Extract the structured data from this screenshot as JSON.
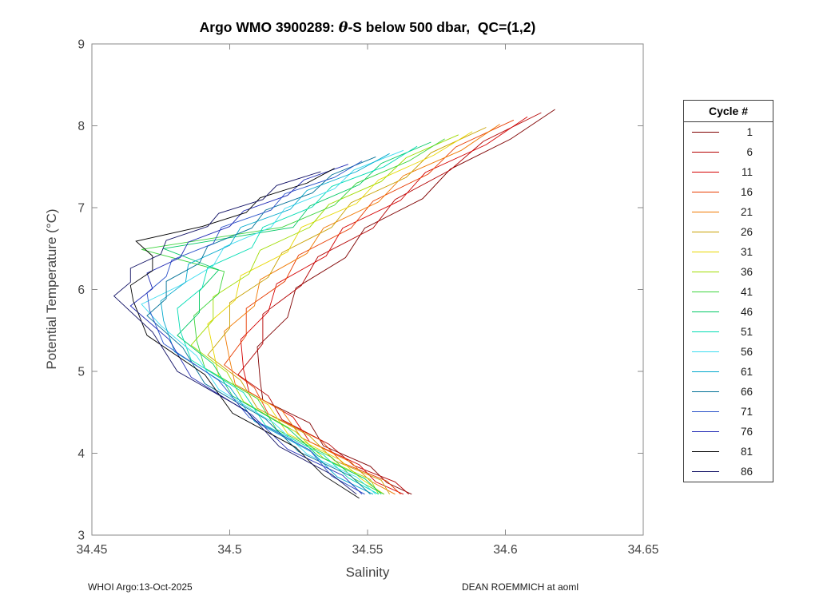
{
  "title": {
    "prefix": "Argo WMO 3900289: ",
    "theta": "θ",
    "suffix": "-S below 500 dbar,  QC=(1,2)"
  },
  "footer": {
    "left": "WHOI Argo:13-Oct-2025",
    "right": "DEAN ROEMMICH at aoml"
  },
  "chart_data": {
    "type": "line",
    "title": "Argo WMO 3900289: θ-S below 500 dbar,  QC=(1,2)",
    "xlabel": "Salinity",
    "ylabel": "Potential Temperature (°C)",
    "xlim": [
      34.45,
      34.65
    ],
    "ylim": [
      3,
      9
    ],
    "xticks": [
      34.45,
      34.5,
      34.55,
      34.6,
      34.65
    ],
    "xtick_labels": [
      "34.45",
      "34.5",
      "34.55",
      "34.6",
      "34.65"
    ],
    "yticks": [
      3,
      4,
      5,
      6,
      7,
      8,
      9
    ],
    "ytick_labels": [
      "3",
      "4",
      "5",
      "6",
      "7",
      "8",
      "9"
    ],
    "grid": false,
    "legend_title": "Cycle #",
    "legend_position": "right-outside",
    "series": [
      {
        "label": "1",
        "color": "#7f0000",
        "t": [
          8.2,
          7.84,
          7.47,
          7.11,
          6.75,
          6.39,
          6.02,
          5.66,
          5.3,
          4.9,
          4.65,
          4.37,
          4.09,
          3.84,
          3.64,
          3.5
        ],
        "s": [
          34.618,
          34.602,
          34.58,
          34.57,
          34.549,
          34.542,
          34.524,
          34.521,
          34.51,
          34.511,
          34.512,
          34.529,
          34.534,
          34.551,
          34.557,
          34.566
        ]
      },
      {
        "label": "6",
        "color": "#b40000",
        "t": [
          8.16,
          7.81,
          7.46,
          7.1,
          6.75,
          6.4,
          6.05,
          5.7,
          5.34,
          4.96,
          4.7,
          4.41,
          4.11,
          3.85,
          3.65,
          3.5
        ],
        "s": [
          34.613,
          34.592,
          34.58,
          34.56,
          34.552,
          34.532,
          34.526,
          34.512,
          34.512,
          34.503,
          34.514,
          34.519,
          34.536,
          34.545,
          34.56,
          34.565
        ]
      },
      {
        "label": "11",
        "color": "#d40000",
        "t": [
          8.11,
          7.77,
          7.43,
          7.09,
          6.75,
          6.41,
          6.07,
          5.73,
          5.39,
          5.02,
          4.75,
          4.44,
          4.14,
          3.86,
          3.65,
          3.5
        ],
        "s": [
          34.608,
          34.593,
          34.571,
          34.562,
          34.541,
          34.535,
          34.517,
          34.514,
          34.504,
          34.505,
          34.507,
          34.523,
          34.529,
          34.547,
          34.553,
          34.563
        ]
      },
      {
        "label": "16",
        "color": "#e83c00",
        "t": [
          8.07,
          7.74,
          7.41,
          7.08,
          6.75,
          6.42,
          6.1,
          5.77,
          5.44,
          5.08,
          4.8,
          4.48,
          4.16,
          3.88,
          3.66,
          3.5
        ],
        "s": [
          34.603,
          34.582,
          34.572,
          34.552,
          34.544,
          34.525,
          34.52,
          34.506,
          34.506,
          34.498,
          34.509,
          34.514,
          34.533,
          34.541,
          34.557,
          34.562
        ]
      },
      {
        "label": "21",
        "color": "#f07800",
        "t": [
          8.02,
          7.7,
          7.39,
          7.07,
          6.75,
          6.44,
          6.12,
          5.8,
          5.49,
          5.14,
          4.84,
          4.52,
          4.19,
          3.89,
          3.66,
          3.5
        ],
        "s": [
          34.598,
          34.584,
          34.563,
          34.554,
          34.534,
          34.528,
          34.511,
          34.509,
          34.498,
          34.5,
          34.502,
          34.519,
          34.526,
          34.544,
          34.551,
          34.56
        ]
      },
      {
        "label": "26",
        "color": "#c8a000",
        "t": [
          7.98,
          7.67,
          7.37,
          7.06,
          6.76,
          6.45,
          6.15,
          5.84,
          5.53,
          5.2,
          4.89,
          4.55,
          4.21,
          3.91,
          3.67,
          3.5
        ],
        "s": [
          34.593,
          34.573,
          34.564,
          34.544,
          34.537,
          34.519,
          34.514,
          34.5,
          34.5,
          34.492,
          34.504,
          34.51,
          34.529,
          34.538,
          34.555,
          34.558
        ]
      },
      {
        "label": "31",
        "color": "#e8d800",
        "t": [
          7.93,
          7.64,
          7.34,
          7.05,
          6.76,
          6.46,
          6.17,
          5.87,
          5.58,
          5.26,
          4.94,
          4.59,
          4.24,
          3.92,
          3.68,
          3.5
        ],
        "s": [
          34.588,
          34.574,
          34.554,
          34.546,
          34.526,
          34.521,
          34.504,
          34.502,
          34.492,
          34.494,
          34.496,
          34.514,
          34.521,
          34.54,
          34.548,
          34.556
        ]
      },
      {
        "label": "36",
        "color": "#a0dc00",
        "t": [
          7.89,
          7.61,
          7.32,
          7.04,
          6.76,
          6.48,
          6.19,
          5.91,
          5.63,
          5.32,
          4.99,
          4.63,
          4.26,
          3.94,
          3.68,
          3.5
        ],
        "s": [
          34.583,
          34.564,
          34.555,
          34.536,
          34.529,
          34.511,
          34.507,
          34.494,
          34.494,
          34.486,
          34.499,
          34.505,
          34.524,
          34.534,
          34.551,
          34.554
        ]
      },
      {
        "label": "41",
        "color": "#3cd43c",
        "t": [
          7.84,
          7.57,
          7.3,
          7.03,
          6.76,
          6.49,
          6.22,
          5.95,
          5.68,
          5.38,
          5.04,
          4.67,
          4.29,
          3.95,
          3.69,
          3.5
        ],
        "s": [
          34.578,
          34.565,
          34.546,
          34.538,
          34.519,
          34.468,
          34.498,
          34.496,
          34.487,
          34.488,
          34.491,
          34.51,
          34.517,
          34.537,
          34.545,
          34.556
        ]
      },
      {
        "label": "46",
        "color": "#00c864",
        "t": [
          7.8,
          7.54,
          7.28,
          7.02,
          6.76,
          6.5,
          6.24,
          5.98,
          5.72,
          5.44,
          5.09,
          4.7,
          4.31,
          3.97,
          3.69,
          3.5
        ],
        "s": [
          34.573,
          34.555,
          34.547,
          34.529,
          34.523,
          34.476,
          34.496,
          34.489,
          34.489,
          34.481,
          34.494,
          34.501,
          34.521,
          34.532,
          34.549,
          34.555
        ]
      },
      {
        "label": "51",
        "color": "#00dcb4",
        "t": [
          7.75,
          7.5,
          7.26,
          7.01,
          6.76,
          6.51,
          6.27,
          6.02,
          5.77,
          5.5,
          5.14,
          4.74,
          4.34,
          3.98,
          3.7,
          3.5
        ],
        "s": [
          34.568,
          34.556,
          34.537,
          34.53,
          34.512,
          34.508,
          34.492,
          34.49,
          34.481,
          34.482,
          34.486,
          34.505,
          34.513,
          34.534,
          34.543,
          34.554
        ]
      },
      {
        "label": "56",
        "color": "#3cdcf0",
        "t": [
          7.7,
          7.46,
          7.23,
          6.99,
          6.76,
          6.52,
          6.29,
          6.05,
          5.82,
          5.56,
          5.19,
          4.78,
          4.37,
          3.99,
          3.71,
          3.5
        ],
        "s": [
          34.563,
          34.545,
          34.538,
          34.52,
          34.515,
          34.498,
          34.494,
          34.482,
          34.468,
          34.475,
          34.488,
          34.496,
          34.516,
          34.528,
          34.546,
          34.553
        ]
      },
      {
        "label": "61",
        "color": "#00a8cc",
        "t": [
          7.66,
          7.44,
          7.21,
          6.98,
          6.76,
          6.54,
          6.31,
          6.09,
          5.86,
          5.62,
          5.24,
          4.81,
          4.39,
          4.01,
          3.71,
          3.5
        ],
        "s": [
          34.558,
          34.546,
          34.528,
          34.522,
          34.504,
          34.5,
          34.485,
          34.484,
          34.475,
          34.476,
          34.48,
          34.5,
          34.509,
          34.53,
          34.539,
          34.552
        ]
      },
      {
        "label": "66",
        "color": "#007096",
        "t": [
          7.62,
          7.4,
          7.18,
          6.97,
          6.75,
          6.53,
          6.32,
          6.1,
          5.89,
          5.68,
          5.29,
          4.85,
          4.42,
          4.02,
          3.72,
          3.5
        ],
        "s": [
          34.553,
          34.537,
          34.53,
          34.513,
          34.508,
          34.492,
          34.489,
          34.477,
          34.477,
          34.47,
          34.483,
          34.491,
          34.513,
          34.525,
          34.544,
          34.551
        ]
      },
      {
        "label": "71",
        "color": "#2850c8",
        "t": [
          7.57,
          7.37,
          7.17,
          6.97,
          6.76,
          6.56,
          6.36,
          6.16,
          5.96,
          5.74,
          5.34,
          4.89,
          4.44,
          4.04,
          3.72,
          3.5
        ],
        "s": [
          34.548,
          34.538,
          34.52,
          34.515,
          34.497,
          34.494,
          34.479,
          34.477,
          34.47,
          34.471,
          34.476,
          34.496,
          34.507,
          34.529,
          34.537,
          34.549
        ]
      },
      {
        "label": "76",
        "color": "#1e28b4",
        "t": [
          7.53,
          7.34,
          7.15,
          6.96,
          6.77,
          6.58,
          6.39,
          6.2,
          6.01,
          5.8,
          5.39,
          4.93,
          4.47,
          4.05,
          3.73,
          3.5
        ],
        "s": [
          34.543,
          34.527,
          34.521,
          34.505,
          34.5,
          34.485,
          34.482,
          34.47,
          34.472,
          34.464,
          34.478,
          34.486,
          34.508,
          34.521,
          34.541,
          34.548
        ]
      },
      {
        "label": "81",
        "color": "#000000",
        "t": [
          7.48,
          7.3,
          7.12,
          6.94,
          6.77,
          6.59,
          6.41,
          6.23,
          6.05,
          5.86,
          5.44,
          4.96,
          4.49,
          4.07,
          3.73,
          3.45
        ],
        "s": [
          34.538,
          34.528,
          34.511,
          34.506,
          34.49,
          34.466,
          34.472,
          34.472,
          34.464,
          34.465,
          34.47,
          34.491,
          34.501,
          34.524,
          34.534,
          34.547
        ]
      },
      {
        "label": "86",
        "color": "#101064",
        "t": [
          7.44,
          7.27,
          7.1,
          6.93,
          6.77,
          6.6,
          6.43,
          6.26,
          6.09,
          5.92,
          5.48,
          5.0,
          4.52,
          4.08,
          3.74,
          3.5
        ],
        "s": [
          34.533,
          34.517,
          34.512,
          34.496,
          34.492,
          34.477,
          34.475,
          34.464,
          34.464,
          34.458,
          34.472,
          34.481,
          34.506,
          34.518,
          34.537,
          34.546
        ]
      }
    ]
  }
}
